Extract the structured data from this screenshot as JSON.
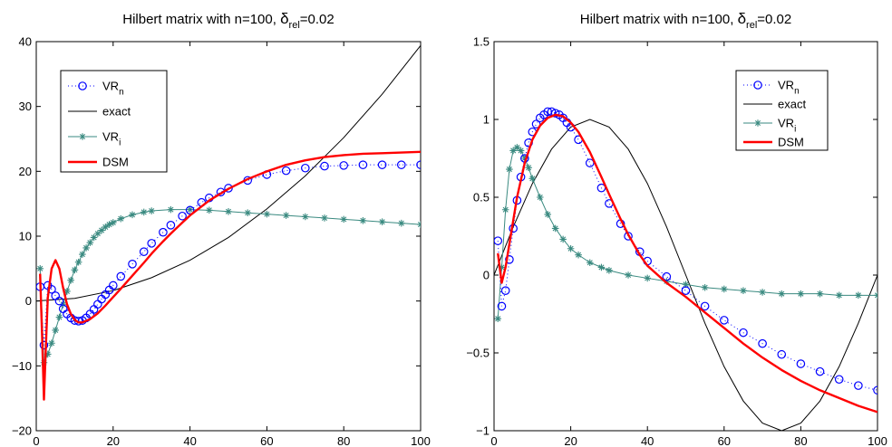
{
  "chart_data": [
    {
      "type": "line",
      "title": "Hilbert matrix with n=100, δ_rel=0.02",
      "title_parts": {
        "prefix": "Hilbert matrix with n=100, ",
        "delta": "δ",
        "sub": "rel",
        "suffix": "=0.02"
      },
      "xlim": [
        0,
        100
      ],
      "ylim": [
        -20,
        40
      ],
      "xticks": [
        0,
        20,
        40,
        60,
        80,
        100
      ],
      "yticks": [
        -20,
        -10,
        0,
        10,
        20,
        30,
        40
      ],
      "legend_position": "top-left",
      "series": [
        {
          "name": "VR_n",
          "label_main": "VR",
          "label_sub": "n",
          "color": "#0000ff",
          "style": "circle-dotted",
          "points": [
            [
              1,
              2.2
            ],
            [
              2,
              -6.8
            ],
            [
              3,
              2.4
            ],
            [
              4,
              1.8
            ],
            [
              5,
              0.8
            ],
            [
              6,
              0.0
            ],
            [
              7,
              -1.2
            ],
            [
              8,
              -2.0
            ],
            [
              9,
              -2.6
            ],
            [
              10,
              -3.0
            ],
            [
              11,
              -3.1
            ],
            [
              12,
              -3.0
            ],
            [
              13,
              -2.6
            ],
            [
              14,
              -2.0
            ],
            [
              15,
              -1.3
            ],
            [
              16,
              -0.5
            ],
            [
              17,
              0.3
            ],
            [
              18,
              1.0
            ],
            [
              19,
              1.7
            ],
            [
              20,
              2.4
            ],
            [
              22,
              3.8
            ],
            [
              25,
              5.7
            ],
            [
              28,
              7.6
            ],
            [
              30,
              8.9
            ],
            [
              33,
              10.6
            ],
            [
              35,
              11.7
            ],
            [
              38,
              13.1
            ],
            [
              40,
              14.0
            ],
            [
              43,
              15.2
            ],
            [
              45,
              15.9
            ],
            [
              48,
              16.8
            ],
            [
              50,
              17.4
            ],
            [
              55,
              18.6
            ],
            [
              60,
              19.5
            ],
            [
              65,
              20.1
            ],
            [
              70,
              20.5
            ],
            [
              75,
              20.8
            ],
            [
              80,
              20.9
            ],
            [
              85,
              21.0
            ],
            [
              90,
              21.0
            ],
            [
              95,
              21.0
            ],
            [
              100,
              21.0
            ]
          ]
        },
        {
          "name": "exact",
          "label_main": "exact",
          "label_sub": "",
          "color": "#000000",
          "style": "line-thin",
          "points": [
            [
              0,
              0
            ],
            [
              10,
              0.4
            ],
            [
              20,
              1.6
            ],
            [
              30,
              3.6
            ],
            [
              40,
              6.3
            ],
            [
              50,
              9.8
            ],
            [
              60,
              14.2
            ],
            [
              70,
              19.3
            ],
            [
              80,
              25.2
            ],
            [
              90,
              31.9
            ],
            [
              100,
              39.4
            ]
          ]
        },
        {
          "name": "VR_i",
          "label_main": "VR",
          "label_sub": "i",
          "color": "#3a8a80",
          "style": "star-line",
          "points": [
            [
              1,
              5.0
            ],
            [
              2,
              -9.5
            ],
            [
              3,
              -8.2
            ],
            [
              4,
              -6.5
            ],
            [
              5,
              -4.5
            ],
            [
              6,
              -2.5
            ],
            [
              7,
              -0.5
            ],
            [
              8,
              1.5
            ],
            [
              9,
              3.2
            ],
            [
              10,
              4.8
            ],
            [
              11,
              6.0
            ],
            [
              12,
              7.2
            ],
            [
              13,
              8.2
            ],
            [
              14,
              9.0
            ],
            [
              15,
              9.8
            ],
            [
              16,
              10.4
            ],
            [
              17,
              10.9
            ],
            [
              18,
              11.4
            ],
            [
              19,
              11.8
            ],
            [
              20,
              12.1
            ],
            [
              22,
              12.7
            ],
            [
              25,
              13.3
            ],
            [
              28,
              13.7
            ],
            [
              30,
              13.9
            ],
            [
              35,
              14.1
            ],
            [
              40,
              14.1
            ],
            [
              45,
              14.0
            ],
            [
              50,
              13.8
            ],
            [
              55,
              13.6
            ],
            [
              60,
              13.4
            ],
            [
              65,
              13.2
            ],
            [
              70,
              13.0
            ],
            [
              75,
              12.8
            ],
            [
              80,
              12.6
            ],
            [
              85,
              12.4
            ],
            [
              90,
              12.2
            ],
            [
              95,
              12.0
            ],
            [
              100,
              11.8
            ]
          ]
        },
        {
          "name": "DSM",
          "label_main": "DSM",
          "label_sub": "",
          "color": "#ff0000",
          "style": "line-thick",
          "points": [
            [
              1,
              4.2
            ],
            [
              1.5,
              -5.0
            ],
            [
              2,
              -15.2
            ],
            [
              2.5,
              -7.0
            ],
            [
              3,
              0.5
            ],
            [
              4,
              5.0
            ],
            [
              5,
              6.3
            ],
            [
              6,
              5.0
            ],
            [
              7,
              2.0
            ],
            [
              8,
              -0.5
            ],
            [
              9,
              -2.0
            ],
            [
              10,
              -2.9
            ],
            [
              11,
              -3.3
            ],
            [
              12,
              -3.3
            ],
            [
              14,
              -2.8
            ],
            [
              16,
              -1.9
            ],
            [
              18,
              -0.7
            ],
            [
              20,
              0.6
            ],
            [
              22,
              1.9
            ],
            [
              25,
              3.9
            ],
            [
              28,
              5.9
            ],
            [
              30,
              7.3
            ],
            [
              33,
              9.2
            ],
            [
              35,
              10.4
            ],
            [
              38,
              12.1
            ],
            [
              40,
              13.2
            ],
            [
              45,
              15.5
            ],
            [
              50,
              17.3
            ],
            [
              55,
              18.8
            ],
            [
              60,
              20.0
            ],
            [
              65,
              21.0
            ],
            [
              70,
              21.7
            ],
            [
              75,
              22.2
            ],
            [
              80,
              22.5
            ],
            [
              85,
              22.7
            ],
            [
              90,
              22.8
            ],
            [
              95,
              22.9
            ],
            [
              100,
              23.0
            ]
          ]
        }
      ]
    },
    {
      "type": "line",
      "title": "Hilbert matrix with n=100, δ_rel=0.02",
      "title_parts": {
        "prefix": "Hilbert matrix with n=100, ",
        "delta": "δ",
        "sub": "rel",
        "suffix": "=0.02"
      },
      "xlim": [
        0,
        100
      ],
      "ylim": [
        -1,
        1.5
      ],
      "xticks": [
        0,
        20,
        40,
        60,
        80,
        100
      ],
      "yticks": [
        -1,
        -0.5,
        0,
        0.5,
        1,
        1.5
      ],
      "ytick_labels": [
        "−1",
        "−0.5",
        "0",
        "0.5",
        "1",
        "1.5"
      ],
      "legend_position": "top-right",
      "series": [
        {
          "name": "VR_n",
          "label_main": "VR",
          "label_sub": "n",
          "color": "#0000ff",
          "style": "circle-dotted",
          "points": [
            [
              1,
              0.22
            ],
            [
              2,
              -0.2
            ],
            [
              3,
              -0.1
            ],
            [
              4,
              0.1
            ],
            [
              5,
              0.3
            ],
            [
              6,
              0.48
            ],
            [
              7,
              0.63
            ],
            [
              8,
              0.75
            ],
            [
              9,
              0.85
            ],
            [
              10,
              0.92
            ],
            [
              11,
              0.97
            ],
            [
              12,
              1.01
            ],
            [
              13,
              1.03
            ],
            [
              14,
              1.05
            ],
            [
              15,
              1.05
            ],
            [
              16,
              1.04
            ],
            [
              17,
              1.03
            ],
            [
              18,
              1.01
            ],
            [
              19,
              0.98
            ],
            [
              20,
              0.95
            ],
            [
              22,
              0.87
            ],
            [
              25,
              0.72
            ],
            [
              28,
              0.56
            ],
            [
              30,
              0.46
            ],
            [
              33,
              0.33
            ],
            [
              35,
              0.25
            ],
            [
              38,
              0.15
            ],
            [
              40,
              0.09
            ],
            [
              45,
              -0.01
            ],
            [
              50,
              -0.1
            ],
            [
              55,
              -0.2
            ],
            [
              60,
              -0.29
            ],
            [
              65,
              -0.37
            ],
            [
              70,
              -0.44
            ],
            [
              75,
              -0.51
            ],
            [
              80,
              -0.57
            ],
            [
              85,
              -0.62
            ],
            [
              90,
              -0.67
            ],
            [
              95,
              -0.71
            ],
            [
              100,
              -0.74
            ]
          ]
        },
        {
          "name": "exact",
          "label_main": "exact",
          "label_sub": "",
          "color": "#000000",
          "style": "line-thin",
          "points": [
            [
              0,
              0
            ],
            [
              5,
              0.309
            ],
            [
              10,
              0.588
            ],
            [
              15,
              0.809
            ],
            [
              20,
              0.951
            ],
            [
              25,
              1.0
            ],
            [
              30,
              0.951
            ],
            [
              35,
              0.809
            ],
            [
              40,
              0.588
            ],
            [
              45,
              0.309
            ],
            [
              50,
              0.0
            ],
            [
              55,
              -0.309
            ],
            [
              60,
              -0.588
            ],
            [
              65,
              -0.809
            ],
            [
              70,
              -0.951
            ],
            [
              75,
              -1.0
            ],
            [
              80,
              -0.951
            ],
            [
              85,
              -0.809
            ],
            [
              90,
              -0.588
            ],
            [
              95,
              -0.309
            ],
            [
              100,
              0.0
            ]
          ]
        },
        {
          "name": "VR_i",
          "label_main": "VR",
          "label_sub": "i",
          "color": "#3a8a80",
          "style": "star-line",
          "points": [
            [
              1,
              -0.28
            ],
            [
              2,
              0.05
            ],
            [
              3,
              0.42
            ],
            [
              4,
              0.68
            ],
            [
              5,
              0.8
            ],
            [
              6,
              0.82
            ],
            [
              7,
              0.8
            ],
            [
              8,
              0.75
            ],
            [
              9,
              0.69
            ],
            [
              10,
              0.62
            ],
            [
              12,
              0.5
            ],
            [
              14,
              0.39
            ],
            [
              16,
              0.3
            ],
            [
              18,
              0.23
            ],
            [
              20,
              0.17
            ],
            [
              22,
              0.13
            ],
            [
              25,
              0.08
            ],
            [
              28,
              0.05
            ],
            [
              30,
              0.03
            ],
            [
              35,
              0.0
            ],
            [
              40,
              -0.02
            ],
            [
              45,
              -0.04
            ],
            [
              50,
              -0.06
            ],
            [
              55,
              -0.08
            ],
            [
              60,
              -0.09
            ],
            [
              65,
              -0.1
            ],
            [
              70,
              -0.11
            ],
            [
              75,
              -0.12
            ],
            [
              80,
              -0.12
            ],
            [
              85,
              -0.12
            ],
            [
              90,
              -0.13
            ],
            [
              95,
              -0.13
            ],
            [
              100,
              -0.13
            ]
          ]
        },
        {
          "name": "DSM",
          "label_main": "DSM",
          "label_sub": "",
          "color": "#ff0000",
          "style": "line-thick",
          "points": [
            [
              1,
              0.14
            ],
            [
              2,
              -0.05
            ],
            [
              3,
              0.05
            ],
            [
              4,
              0.2
            ],
            [
              5,
              0.35
            ],
            [
              6,
              0.5
            ],
            [
              8,
              0.72
            ],
            [
              10,
              0.87
            ],
            [
              12,
              0.96
            ],
            [
              14,
              1.01
            ],
            [
              16,
              1.03
            ],
            [
              18,
              1.02
            ],
            [
              20,
              0.98
            ],
            [
              22,
              0.92
            ],
            [
              25,
              0.79
            ],
            [
              28,
              0.63
            ],
            [
              30,
              0.52
            ],
            [
              33,
              0.36
            ],
            [
              35,
              0.26
            ],
            [
              38,
              0.13
            ],
            [
              40,
              0.06
            ],
            [
              45,
              -0.05
            ],
            [
              50,
              -0.14
            ],
            [
              55,
              -0.24
            ],
            [
              60,
              -0.34
            ],
            [
              65,
              -0.44
            ],
            [
              70,
              -0.53
            ],
            [
              75,
              -0.61
            ],
            [
              80,
              -0.68
            ],
            [
              85,
              -0.74
            ],
            [
              90,
              -0.79
            ],
            [
              95,
              -0.84
            ],
            [
              100,
              -0.88
            ]
          ]
        }
      ]
    }
  ]
}
